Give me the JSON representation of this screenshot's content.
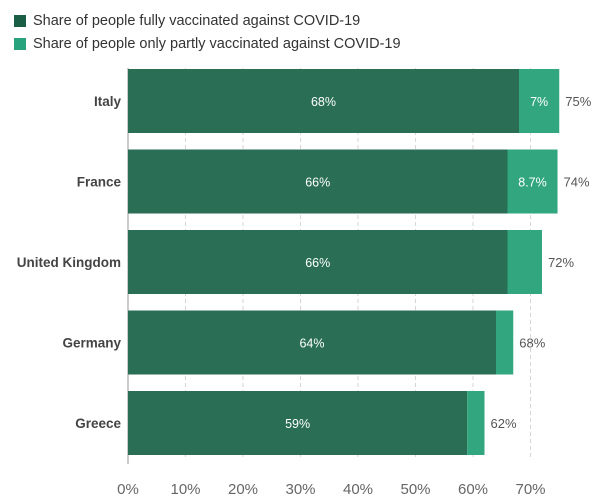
{
  "legend": {
    "items": [
      {
        "label": "Share of people fully vaccinated against COVID-19",
        "color": "#1a5e46"
      },
      {
        "label": "Share of people only partly vaccinated against COVID-19",
        "color": "#27a37d"
      }
    ]
  },
  "chart_data": {
    "type": "bar",
    "orientation": "horizontal",
    "stacked": true,
    "categories": [
      "Italy",
      "France",
      "United Kingdom",
      "Germany",
      "Greece"
    ],
    "series": [
      {
        "name": "Share of people fully vaccinated against COVID-19",
        "values": [
          68,
          66,
          66,
          64,
          59
        ],
        "labels": [
          "68%",
          "66%",
          "66%",
          "64%",
          "59%"
        ],
        "color": "#2a6e56"
      },
      {
        "name": "Share of people only partly vaccinated against COVID-19",
        "values": [
          7,
          8.7,
          6,
          3,
          3
        ],
        "labels": [
          "7%",
          "8.7%",
          "",
          "",
          ""
        ],
        "color": "#32a67f"
      }
    ],
    "totals": [
      "75%",
      "74%",
      "72%",
      "68%",
      "62%"
    ],
    "xlim": [
      0,
      75
    ],
    "xticks": [
      0,
      10,
      20,
      30,
      40,
      50,
      60,
      70
    ],
    "xtick_labels": [
      "0%",
      "10%",
      "20%",
      "30%",
      "40%",
      "50%",
      "60%",
      "70%"
    ],
    "grid": "vertical-dashed",
    "legend_position": "top-left"
  }
}
